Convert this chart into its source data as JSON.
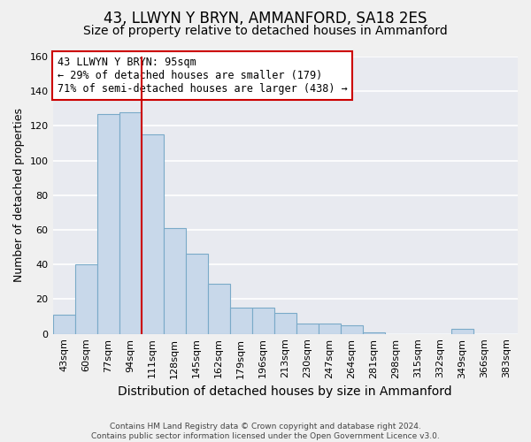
{
  "title": "43, LLWYN Y BRYN, AMMANFORD, SA18 2ES",
  "subtitle": "Size of property relative to detached houses in Ammanford",
  "xlabel": "Distribution of detached houses by size in Ammanford",
  "ylabel": "Number of detached properties",
  "footer_lines": [
    "Contains HM Land Registry data © Crown copyright and database right 2024.",
    "Contains public sector information licensed under the Open Government Licence v3.0."
  ],
  "bin_labels": [
    "43sqm",
    "60sqm",
    "77sqm",
    "94sqm",
    "111sqm",
    "128sqm",
    "145sqm",
    "162sqm",
    "179sqm",
    "196sqm",
    "213sqm",
    "230sqm",
    "247sqm",
    "264sqm",
    "281sqm",
    "298sqm",
    "315sqm",
    "332sqm",
    "349sqm",
    "366sqm",
    "383sqm"
  ],
  "bar_values": [
    11,
    40,
    127,
    128,
    115,
    61,
    46,
    29,
    15,
    15,
    12,
    6,
    6,
    5,
    1,
    0,
    0,
    0,
    3,
    0,
    0
  ],
  "bar_color": "#c8d8ea",
  "bar_edge_color": "#7aaac8",
  "vline_bar_index": 3,
  "vline_color": "#cc0000",
  "annotation_text": "43 LLWYN Y BRYN: 95sqm\n← 29% of detached houses are smaller (179)\n71% of semi-detached houses are larger (438) →",
  "annotation_box_edge_color": "#cc0000",
  "annotation_fontsize": 8.5,
  "ylim": [
    0,
    160
  ],
  "yticks": [
    0,
    20,
    40,
    60,
    80,
    100,
    120,
    140,
    160
  ],
  "background_color": "#f0f0f0",
  "plot_bg_color": "#e8e8f0",
  "grid_color": "#ffffff",
  "title_fontsize": 12,
  "subtitle_fontsize": 10,
  "xlabel_fontsize": 10,
  "ylabel_fontsize": 9,
  "tick_fontsize": 8
}
